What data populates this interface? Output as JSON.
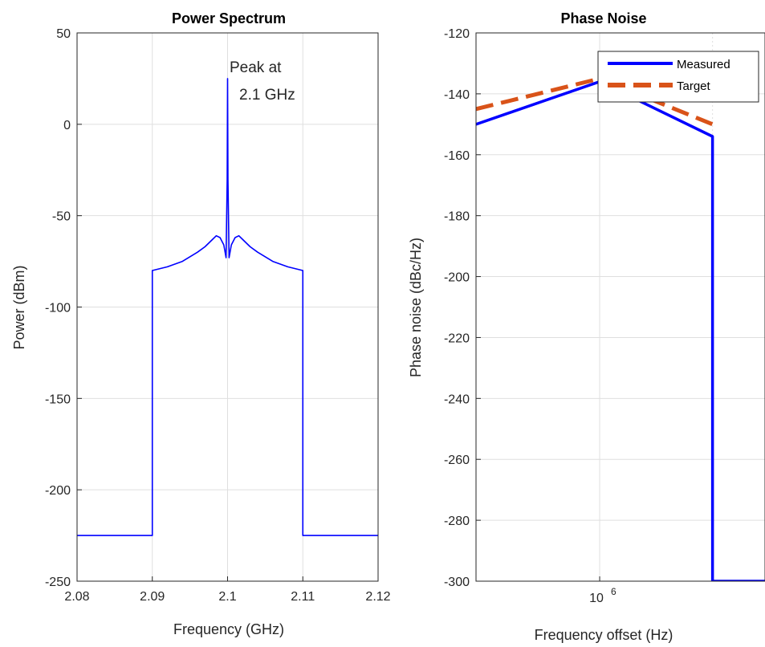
{
  "chart_data": [
    {
      "type": "line",
      "title": "Power Spectrum",
      "xlabel": "Frequency (GHz)",
      "ylabel": "Power (dBm)",
      "xlim": [
        2.08,
        2.12
      ],
      "ylim": [
        -250,
        50
      ],
      "xticks": [
        2.08,
        2.09,
        2.1,
        2.11,
        2.12
      ],
      "xtick_labels": [
        "2.08",
        "2.09",
        "2.1",
        "2.11",
        "2.12"
      ],
      "yticks": [
        50,
        0,
        -50,
        -100,
        -150,
        -200,
        -250
      ],
      "ytick_labels": [
        "50",
        "0",
        "-50",
        "-100",
        "-150",
        "-200",
        "-250"
      ],
      "grid": true,
      "annotation": {
        "lines": [
          "Peak at",
          "2.1 GHz"
        ],
        "x": 2.1,
        "y": 25
      },
      "series": [
        {
          "color": "#0000ff",
          "x": [
            2.08,
            2.09,
            2.09,
            2.092,
            2.094,
            2.096,
            2.097,
            2.098,
            2.0985,
            2.099,
            2.0995,
            2.0998,
            2.09995,
            2.1,
            2.10005,
            2.1002,
            2.1005,
            2.101,
            2.1015,
            2.102,
            2.103,
            2.104,
            2.106,
            2.108,
            2.11,
            2.11,
            2.12
          ],
          "y": [
            -225,
            -225,
            -80,
            -78,
            -75,
            -70,
            -67,
            -63,
            -61,
            -62,
            -66,
            -73,
            -30,
            25,
            -30,
            -73,
            -66,
            -62,
            -61,
            -63,
            -67,
            -70,
            -75,
            -78,
            -80,
            -225,
            -225
          ]
        }
      ]
    },
    {
      "type": "line",
      "title": "Phase Noise",
      "xlabel": "Frequency offset (Hz)",
      "ylabel": "Phase noise (dBc/Hz)",
      "xscale": "log",
      "xlim": [
        300000,
        5000000
      ],
      "ylim": [
        -300,
        -120
      ],
      "xticks": [
        1000000
      ],
      "xtick_labels": [
        "10^6"
      ],
      "yticks": [
        -120,
        -140,
        -160,
        -180,
        -200,
        -220,
        -240,
        -260,
        -280,
        -300
      ],
      "ytick_labels": [
        "-120",
        "-140",
        "-160",
        "-180",
        "-200",
        "-220",
        "-240",
        "-260",
        "-280",
        "-300"
      ],
      "grid": true,
      "legend_position": "top-right",
      "series": [
        {
          "name": "Measured",
          "color": "#0000ff",
          "style": "solid",
          "x": [
            300000,
            1000000,
            3000000,
            3000000,
            5000000
          ],
          "y": [
            -150,
            -136,
            -154,
            -300,
            -300
          ]
        },
        {
          "name": "Target",
          "color": "#d95319",
          "style": "dashed",
          "x": [
            300000,
            1000000,
            3000000
          ],
          "y": [
            -145,
            -135,
            -150
          ]
        }
      ]
    }
  ]
}
